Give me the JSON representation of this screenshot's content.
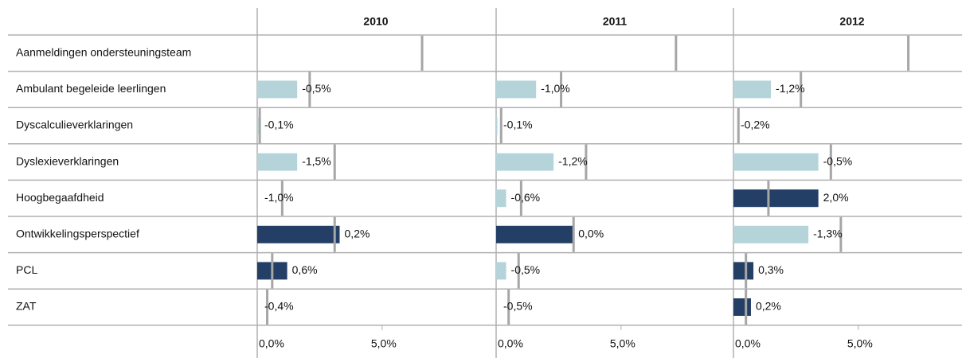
{
  "chart_data": {
    "type": "bar",
    "categories": [
      "Aanmeldingen ondersteuningsteam",
      "Ambulant begeleide leerlingen",
      "Dyscalculieverklaringen",
      "Dyslexieverklaringen",
      "Hoogbegaafdheid",
      "Ontwikkelingsperspectief",
      "PCL",
      "ZAT"
    ],
    "xlim": [
      0,
      9.5
    ],
    "xticks": [
      {
        "value": 0,
        "label": "0,0%"
      },
      {
        "value": 5,
        "label": "5,0%"
      }
    ],
    "reference_color": "#a6a6a6",
    "panels": [
      {
        "title": "2010",
        "values": [
          null,
          1.6,
          0.05,
          1.6,
          0.0,
          3.3,
          1.2,
          0.0
        ],
        "reference": [
          6.6,
          2.1,
          0.1,
          3.1,
          1.0,
          3.1,
          0.6,
          0.4
        ],
        "labels": [
          null,
          "-0,5%",
          "-0,1%",
          "-1,5%",
          "-1,0%",
          "0,2%",
          "0,6%",
          "-0,4%"
        ],
        "colors": [
          null,
          "#b4d4da",
          "#b4d4da",
          "#b4d4da",
          "#b4d4da",
          "#243f66",
          "#243f66",
          "#b4d4da"
        ]
      },
      {
        "title": "2011",
        "values": [
          null,
          1.6,
          0.05,
          2.3,
          0.4,
          3.1,
          0.4,
          0.0
        ],
        "reference": [
          7.2,
          2.6,
          0.2,
          3.6,
          1.0,
          3.1,
          0.9,
          0.5
        ],
        "labels": [
          null,
          "-1,0%",
          "-0,1%",
          "-1,2%",
          "-0,6%",
          "0,0%",
          "-0,5%",
          "-0,5%"
        ],
        "colors": [
          null,
          "#b4d4da",
          "#b4d4da",
          "#b4d4da",
          "#b4d4da",
          "#243f66",
          "#b4d4da",
          "#b4d4da"
        ]
      },
      {
        "title": "2012",
        "values": [
          null,
          1.5,
          0.0,
          3.4,
          3.4,
          3.0,
          0.8,
          0.7
        ],
        "reference": [
          7.0,
          2.7,
          0.2,
          3.9,
          1.4,
          4.3,
          0.5,
          0.5
        ],
        "labels": [
          null,
          "-1,2%",
          "-0,2%",
          "-0,5%",
          "2,0%",
          "-1,3%",
          "0,3%",
          "0,2%"
        ],
        "colors": [
          null,
          "#b4d4da",
          "#b4d4da",
          "#b4d4da",
          "#243f66",
          "#b4d4da",
          "#243f66",
          "#243f66"
        ]
      }
    ]
  }
}
